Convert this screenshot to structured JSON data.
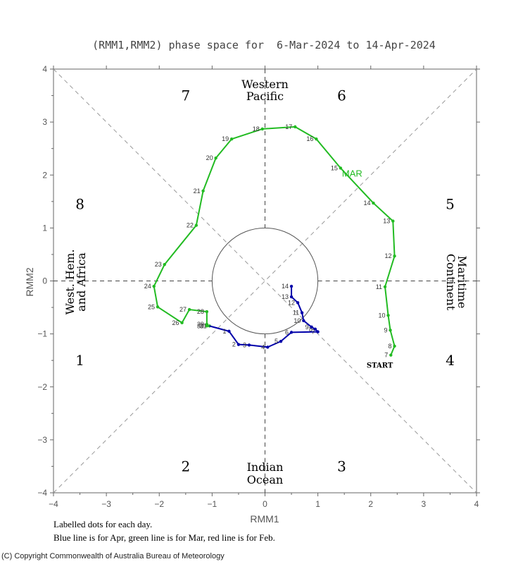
{
  "chart_data": {
    "type": "line",
    "title": "(RMM1,RMM2) phase space for  6-Mar-2024 to 14-Apr-2024",
    "xlabel": "RMM1",
    "ylabel": "RMM2",
    "xlim": [
      -4,
      4
    ],
    "ylim": [
      -4,
      4
    ],
    "x_ticks": [
      "-4",
      "-3",
      "-2",
      "-1",
      "0",
      "1",
      "2",
      "3",
      "4"
    ],
    "y_ticks": [
      "-4",
      "-3",
      "-2",
      "-1",
      "0",
      "1",
      "2",
      "3",
      "4"
    ],
    "grid": false,
    "unit_circle_radius": 1,
    "phases": [
      "1",
      "2",
      "3",
      "4",
      "5",
      "6",
      "7",
      "8"
    ],
    "regions": {
      "top_line1": "Western",
      "top_line2": "Pacific",
      "bottom_line1": "Indian",
      "bottom_line2": "Ocean",
      "left_line1": "West. Hem.",
      "left_line2": "and Africa",
      "right_line1": "Maritime",
      "right_line2": "Continent"
    },
    "start_label": "START",
    "month_label": "MAR",
    "series": [
      {
        "name": "Mar",
        "color": "#22bb22",
        "points": [
          {
            "day": "7",
            "x": 2.38,
            "y": -1.4
          },
          {
            "day": "8",
            "x": 2.45,
            "y": -1.23
          },
          {
            "day": "9",
            "x": 2.37,
            "y": -0.93
          },
          {
            "day": "10",
            "x": 2.33,
            "y": -0.65
          },
          {
            "day": "11",
            "x": 2.27,
            "y": -0.11
          },
          {
            "day": "12",
            "x": 2.45,
            "y": 0.47
          },
          {
            "day": "13",
            "x": 2.42,
            "y": 1.13
          },
          {
            "day": "14",
            "x": 2.05,
            "y": 1.47
          },
          {
            "day": "15",
            "x": 1.43,
            "y": 2.13
          },
          {
            "day": "16",
            "x": 0.97,
            "y": 2.68
          },
          {
            "day": "17",
            "x": 0.57,
            "y": 2.91
          },
          {
            "day": "18",
            "x": -0.05,
            "y": 2.87
          },
          {
            "day": "19",
            "x": -0.63,
            "y": 2.68
          },
          {
            "day": "20",
            "x": -0.93,
            "y": 2.32
          },
          {
            "day": "21",
            "x": -1.17,
            "y": 1.7
          },
          {
            "day": "22",
            "x": -1.3,
            "y": 1.05
          },
          {
            "day": "23",
            "x": -1.9,
            "y": 0.31
          },
          {
            "day": "24",
            "x": -2.1,
            "y": -0.1
          },
          {
            "day": "25",
            "x": -2.03,
            "y": -0.49
          },
          {
            "day": "26",
            "x": -1.57,
            "y": -0.79
          },
          {
            "day": "27",
            "x": -1.43,
            "y": -0.54
          },
          {
            "day": "28",
            "x": -1.1,
            "y": -0.58
          },
          {
            "day": "29",
            "x": -1.1,
            "y": -0.82
          },
          {
            "day": "30",
            "x": -1.1,
            "y": -0.85
          },
          {
            "day": "31",
            "x": -1.05,
            "y": -0.85
          }
        ]
      },
      {
        "name": "Apr",
        "color": "#0000aa",
        "points": [
          {
            "day": "1",
            "x": -0.68,
            "y": -0.95
          },
          {
            "day": "2",
            "x": -0.5,
            "y": -1.2
          },
          {
            "day": "3",
            "x": -0.3,
            "y": -1.21
          },
          {
            "day": "4",
            "x": 0.05,
            "y": -1.25
          },
          {
            "day": "5",
            "x": 0.3,
            "y": -1.14
          },
          {
            "day": "6",
            "x": 0.5,
            "y": -0.97
          },
          {
            "day": "7",
            "x": 1.0,
            "y": -0.96
          },
          {
            "day": "8",
            "x": 0.95,
            "y": -0.91
          },
          {
            "day": "9",
            "x": 0.88,
            "y": -0.87
          },
          {
            "day": "10",
            "x": 0.73,
            "y": -0.75
          },
          {
            "day": "11",
            "x": 0.7,
            "y": -0.6
          },
          {
            "day": "12",
            "x": 0.62,
            "y": -0.41
          },
          {
            "day": "13",
            "x": 0.5,
            "y": -0.3
          },
          {
            "day": "14",
            "x": 0.5,
            "y": -0.1
          }
        ]
      }
    ]
  },
  "footnotes": {
    "line1": "Labelled dots for each day.",
    "line2": "Blue line is for Apr, green line is for Mar, red line is for Feb."
  },
  "copyright": "(C) Copyright Commonwealth of Australia Bureau of Meteorology"
}
